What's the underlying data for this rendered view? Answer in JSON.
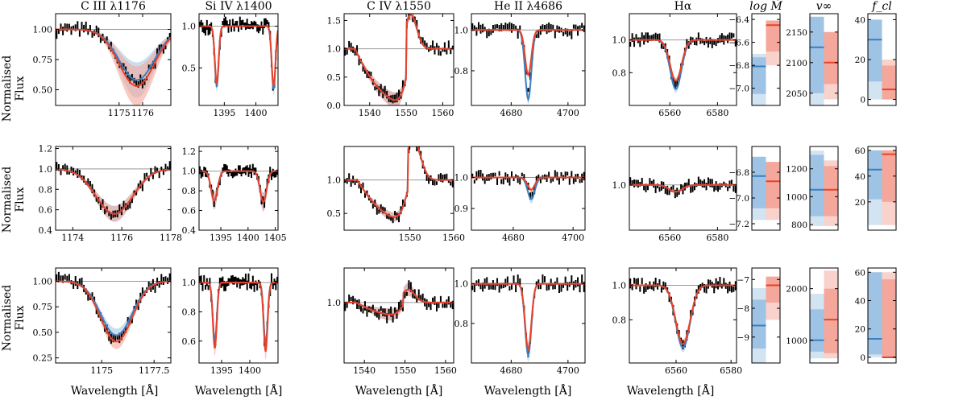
{
  "figure": {
    "ylabel_main": "Normalised",
    "ylabel_sub": "Flux",
    "xlabel": "Wavelength [Å]",
    "colors": {
      "obs": "#000000",
      "blue": "#3a7fbf",
      "blue_band": "#9fc3e4",
      "red": "#e8422b",
      "red_band": "#f4a79a",
      "ref": "#999999"
    }
  },
  "chart_data": {
    "type": "line",
    "description": "3x5 grid of normalised line profiles with posterior bands, plus 3x3 parameter posterior bars",
    "panels": [
      {
        "row": 0,
        "line": "c3",
        "title": "C III λ1176",
        "xlim": [
          1172.3,
          1177.2
        ],
        "ylim": [
          0.37,
          1.13
        ],
        "xticks": [
          1175,
          1176
        ],
        "yticks": [
          0.5,
          0.75,
          1.0
        ],
        "ytick_labels": [
          "0.50",
          "0.75",
          "1.00"
        ],
        "center": 1175.75,
        "width": 0.75,
        "depth_blue": 0.42,
        "depth_red": 0.47,
        "band": 0.14
      },
      {
        "row": 0,
        "line": "si4",
        "title": "Si IV λ1400",
        "xlim": [
          1391,
          1403.5
        ],
        "ylim": [
          0.05,
          1.15
        ],
        "xticks": [
          1395,
          1400
        ],
        "yticks": [
          0.5,
          1.0
        ],
        "ytick_labels": [
          "0.5",
          "1.0"
        ],
        "doublet": [
          1393.8,
          1402.8
        ],
        "width": 0.3,
        "depth_blue": 0.72,
        "depth_red": 0.68,
        "band": 0.04
      },
      {
        "row": 0,
        "line": "c4",
        "title": "C IV λ1550",
        "xlim": [
          1533,
          1563
        ],
        "ylim": [
          0,
          1.62
        ],
        "xticks": [
          1540,
          1550,
          1560
        ],
        "yticks": [
          0.0,
          0.5,
          1.0,
          1.5
        ],
        "ytick_labels": [
          "0.0",
          "0.5",
          "1.0",
          "1.5"
        ],
        "pcygni": true,
        "center": 1550,
        "depth_blue": 0.95,
        "depth_red": 0.95,
        "emission": 0.6,
        "band": 0.06
      },
      {
        "row": 0,
        "line": "he2",
        "title": "He II λ4686",
        "xlim": [
          4666,
          4706
        ],
        "ylim": [
          0.63,
          1.08
        ],
        "xticks": [
          4680,
          4700
        ],
        "yticks": [
          0.8,
          1.0
        ],
        "ytick_labels": [
          "0.8",
          "1.0"
        ],
        "center": 4686,
        "width": 1.1,
        "depth_blue": 0.34,
        "depth_red": 0.22,
        "band": 0.03
      },
      {
        "row": 0,
        "line": "ha",
        "title": "Hα",
        "xlim": [
          6543,
          6588
        ],
        "ylim": [
          0.6,
          1.16
        ],
        "xticks": [
          6560,
          6580
        ],
        "yticks": [
          0.8,
          1.0
        ],
        "ytick_labels": [
          "0.8",
          "1.0"
        ],
        "center": 6562.5,
        "width": 2.4,
        "depth_blue": 0.3,
        "depth_red": 0.25,
        "band": 0.03
      },
      {
        "row": 1,
        "line": "c3",
        "title": "",
        "xlim": [
          1173.3,
          1178
        ],
        "ylim": [
          0.4,
          1.22
        ],
        "xticks": [
          1174,
          1176,
          1178
        ],
        "yticks": [
          0.4,
          0.6,
          0.8,
          1.0,
          1.2
        ],
        "ytick_labels": [
          "0.4",
          "0.6",
          "0.8",
          "1.0",
          "1.2"
        ],
        "center": 1175.7,
        "width": 0.75,
        "depth_blue": 0.44,
        "depth_red": 0.44,
        "band": 0.07
      },
      {
        "row": 1,
        "line": "si4",
        "title": "",
        "xlim": [
          1391,
          1405.5
        ],
        "ylim": [
          0.4,
          1.25
        ],
        "xticks": [
          1395,
          1400,
          1405
        ],
        "yticks": [
          0.4,
          0.6,
          0.8,
          1.0,
          1.2
        ],
        "ytick_labels": [
          "0.4",
          "0.6",
          "0.8",
          "1.0",
          "1.2"
        ],
        "doublet": [
          1393.8,
          1402.8
        ],
        "width": 0.6,
        "depth_blue": 0.3,
        "depth_red": 0.3,
        "band": 0.12
      },
      {
        "row": 1,
        "line": "c4",
        "title": "",
        "xlim": [
          1535,
          1560
        ],
        "ylim": [
          0.25,
          1.5
        ],
        "xticks": [
          1550,
          1560
        ],
        "yticks": [
          0.5,
          1.0
        ],
        "ytick_labels": [
          "0.5",
          "1.0"
        ],
        "pcygni": true,
        "center": 1549.5,
        "depth_blue": 0.6,
        "depth_red": 0.6,
        "emission": 0.6,
        "band": 0.05
      },
      {
        "row": 1,
        "line": "he2",
        "title": "",
        "xlim": [
          4666,
          4704
        ],
        "ylim": [
          0.83,
          1.1
        ],
        "xticks": [
          4680,
          4700
        ],
        "yticks": [
          0.9,
          1.0
        ],
        "ytick_labels": [
          "0.9",
          "1.0"
        ],
        "center": 4686,
        "width": 1.2,
        "depth_blue": 0.07,
        "depth_red": 0.04,
        "band": 0.08
      },
      {
        "row": 1,
        "line": "ha",
        "title": "",
        "xlim": [
          6543,
          6588
        ],
        "ylim": [
          0.8,
          1.17
        ],
        "xticks": [
          6560,
          6580
        ],
        "yticks": [
          1.0
        ],
        "ytick_labels": [
          "1.0"
        ],
        "center": 6562.5,
        "width": 2.8,
        "depth_blue": 0.03,
        "depth_red": 0.03,
        "band": 0.1
      },
      {
        "row": 2,
        "line": "c3",
        "title": "",
        "xlim": [
          1172.8,
          1178.3
        ],
        "ylim": [
          0.2,
          1.13
        ],
        "xticks": [
          1175.0,
          1177.5
        ],
        "yticks": [
          0.25,
          0.5,
          0.75,
          1.0
        ],
        "ytick_labels": [
          "0.25",
          "0.50",
          "0.75",
          "1.00"
        ],
        "center": 1175.7,
        "width": 0.75,
        "depth_blue": 0.53,
        "depth_red": 0.59,
        "band": 0.05
      },
      {
        "row": 2,
        "line": "si4",
        "title": "",
        "xlim": [
          1391,
          1405
        ],
        "ylim": [
          0.45,
          1.1
        ],
        "xticks": [
          1395,
          1400
        ],
        "yticks": [
          0.6,
          0.8,
          1.0
        ],
        "ytick_labels": [
          "0.6",
          "0.8",
          "1.0"
        ],
        "doublet": [
          1393.8,
          1402.8
        ],
        "width": 0.35,
        "depth_blue": 0.4,
        "depth_red": 0.45,
        "band": 0.05
      },
      {
        "row": 2,
        "line": "c4",
        "title": "",
        "xlim": [
          1535,
          1562
        ],
        "ylim": [
          0.3,
          1.4
        ],
        "xticks": [
          1540,
          1550,
          1560
        ],
        "yticks": [
          1.0
        ],
        "ytick_labels": [
          "1.0"
        ],
        "pcygni": true,
        "center": 1549.5,
        "depth_blue": 0.15,
        "depth_red": 0.15,
        "emission": 0.15,
        "band": 0.2
      },
      {
        "row": 2,
        "line": "he2",
        "title": "",
        "xlim": [
          4666,
          4706
        ],
        "ylim": [
          0.6,
          1.08
        ],
        "xticks": [
          4680,
          4700
        ],
        "yticks": [
          0.8,
          1.0
        ],
        "ytick_labels": [
          "0.8",
          "1.0"
        ],
        "center": 4686,
        "width": 1.1,
        "depth_blue": 0.36,
        "depth_red": 0.33,
        "band": 0.04
      },
      {
        "row": 2,
        "line": "ha",
        "title": "",
        "xlim": [
          6543,
          6582
        ],
        "ylim": [
          0.55,
          1.1
        ],
        "xticks": [
          6560,
          6580
        ],
        "yticks": [
          0.8,
          1.0
        ],
        "ytick_labels": [
          "0.8",
          "1.0"
        ],
        "center": 6562.5,
        "width": 2.6,
        "depth_blue": 0.36,
        "depth_red": 0.34,
        "band": 0.03
      }
    ],
    "params": [
      {
        "row": 0,
        "key": "logmdot",
        "title": "log Ṁ",
        "ylim": [
          -7.15,
          -6.35
        ],
        "yticks": [
          -7.0,
          -6.8,
          -6.6,
          -6.4
        ],
        "ytick_labels": [
          "−7.0",
          "−6.8",
          "−6.6",
          "−6.4"
        ],
        "blue": {
          "median": -6.81,
          "inner": [
            -7.05,
            -6.73
          ],
          "outer": [
            -7.15,
            -6.7
          ]
        },
        "red": {
          "median": -6.45,
          "inner": [
            -6.68,
            -6.41
          ],
          "outer": [
            -6.8,
            -6.41
          ]
        }
      },
      {
        "row": 0,
        "key": "vinf",
        "title": "v∞",
        "ylim": [
          2030,
          2180
        ],
        "yticks": [
          2050,
          2100,
          2150
        ],
        "ytick_labels": [
          "2050",
          "2100",
          "2150"
        ],
        "blue": {
          "median": 2125,
          "inner": [
            2050,
            2175
          ],
          "outer": [
            2030,
            2175
          ]
        },
        "red": {
          "median": 2100,
          "inner": [
            2065,
            2150
          ],
          "outer": [
            2040,
            2150
          ]
        }
      },
      {
        "row": 0,
        "key": "fcl",
        "title": "f_cl",
        "ylim": [
          -3,
          43
        ],
        "yticks": [
          0,
          20,
          40
        ],
        "ytick_labels": [
          "0",
          "20",
          "40"
        ],
        "blue": {
          "median": 30,
          "inner": [
            9,
            40
          ],
          "outer": [
            0,
            40
          ]
        },
        "red": {
          "median": 5,
          "inner": [
            0,
            17
          ],
          "outer": [
            0,
            20
          ]
        }
      },
      {
        "row": 1,
        "key": "logmdot",
        "title": "",
        "ylim": [
          -7.25,
          -6.6
        ],
        "yticks": [
          -7.2,
          -7.0,
          -6.8
        ],
        "ytick_labels": [
          "−7.2",
          "−7.0",
          "−6.8"
        ],
        "blue": {
          "median": -6.83,
          "inner": [
            -7.08,
            -6.68
          ],
          "outer": [
            -7.17,
            -6.68
          ]
        },
        "red": {
          "median": -6.87,
          "inner": [
            -7.08,
            -6.72
          ],
          "outer": [
            -7.17,
            -6.72
          ]
        }
      },
      {
        "row": 1,
        "key": "vinf",
        "title": "",
        "ylim": [
          760,
          1360
        ],
        "yticks": [
          800,
          1000,
          1200
        ],
        "ytick_labels": [
          "800",
          "1000",
          "1200"
        ],
        "blue": {
          "median": 1050,
          "inner": [
            860,
            1300
          ],
          "outer": [
            790,
            1330
          ]
        },
        "red": {
          "median": 1050,
          "inner": [
            860,
            1220
          ],
          "outer": [
            790,
            1260
          ]
        }
      },
      {
        "row": 1,
        "key": "fcl",
        "title": "",
        "ylim": [
          -2,
          63
        ],
        "yticks": [
          20,
          40,
          60
        ],
        "ytick_labels": [
          "20",
          "40",
          "60"
        ],
        "blue": {
          "median": 45,
          "inner": [
            22,
            60
          ],
          "outer": [
            2,
            60
          ]
        },
        "red": {
          "median": 57,
          "inner": [
            20,
            60
          ],
          "outer": [
            2,
            60
          ]
        }
      },
      {
        "row": 2,
        "key": "logmdot",
        "title": "",
        "ylim": [
          -9.9,
          -6.6
        ],
        "yticks": [
          -9,
          -8,
          -7
        ],
        "ytick_labels": [
          "−9",
          "−8",
          "−7"
        ],
        "blue": {
          "median": -8.6,
          "inner": [
            -9.4,
            -7.7
          ],
          "outer": [
            -9.9,
            -7.3
          ]
        },
        "red": {
          "median": -7.2,
          "inner": [
            -7.8,
            -6.9
          ],
          "outer": [
            -8.4,
            -6.9
          ]
        }
      },
      {
        "row": 2,
        "key": "vinf",
        "title": "",
        "ylim": [
          560,
          2400
        ],
        "yticks": [
          1000,
          2000
        ],
        "ytick_labels": [
          "1000",
          "2000"
        ],
        "blue": {
          "median": 1000,
          "inner": [
            780,
            1600
          ],
          "outer": [
            650,
            1900
          ]
        },
        "red": {
          "median": 1400,
          "inner": [
            750,
            2000
          ],
          "outer": [
            650,
            2350
          ]
        }
      },
      {
        "row": 2,
        "key": "fcl",
        "title": "",
        "ylim": [
          -4,
          63
        ],
        "yticks": [
          0,
          20,
          40,
          60
        ],
        "ytick_labels": [
          "0",
          "20",
          "40",
          "60"
        ],
        "blue": {
          "median": 13,
          "inner": [
            2,
            60
          ],
          "outer": [
            0,
            60
          ]
        },
        "red": {
          "median": 0,
          "inner": [
            0,
            55
          ],
          "outer": [
            0,
            60
          ]
        }
      }
    ]
  }
}
